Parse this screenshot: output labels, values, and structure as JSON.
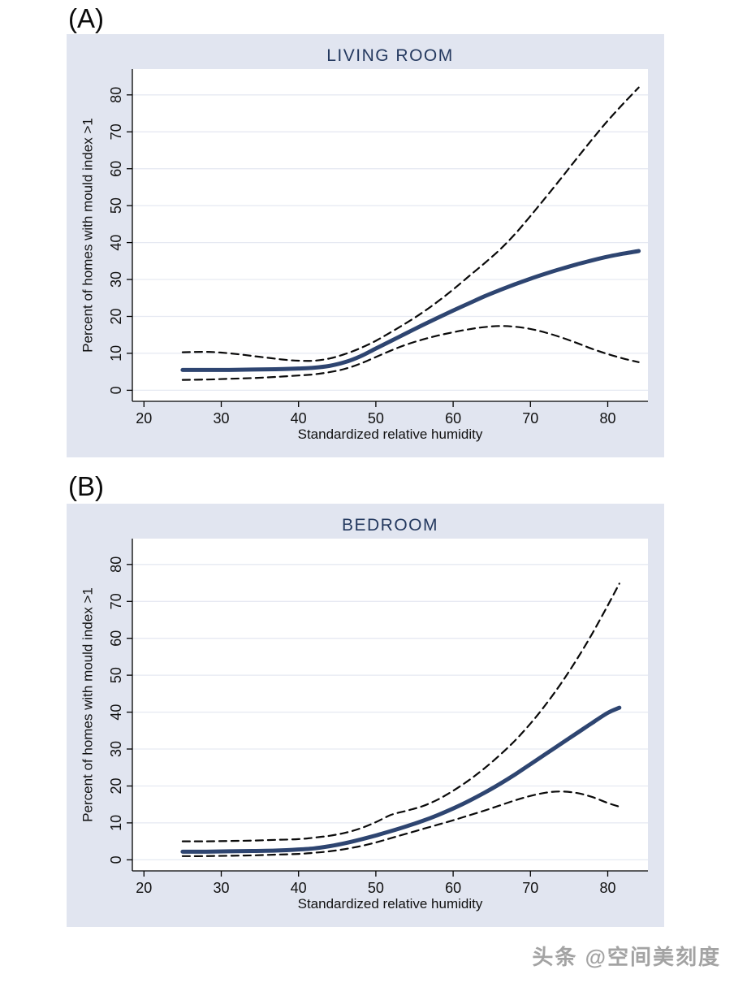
{
  "page": {
    "watermark": "头条 @空间美刻度"
  },
  "theme": {
    "panel_bg": "#e1e5f0",
    "plot_bg": "#ffffff",
    "grid_color": "#e6e9f2",
    "axis_color": "#000000",
    "title_color": "#24395f",
    "fit_line_color": "#2e4571",
    "ci_line_color": "#0a0a0a",
    "text_color": "#111111",
    "watermark_color": "#a3a3a3"
  },
  "chart_data": [
    {
      "type": "line",
      "panel_label": "(A)",
      "title": "LIVING ROOM",
      "xlabel": "Standardized relative humidity",
      "ylabel": "Percent of homes with mould index >1",
      "xticks": [
        20,
        30,
        40,
        50,
        60,
        70,
        80
      ],
      "yticks": [
        0,
        10,
        20,
        30,
        40,
        50,
        60,
        70,
        80
      ],
      "xlim": [
        18.5,
        85.2
      ],
      "ylim": [
        -3,
        87
      ],
      "grid": "horizontal",
      "legend": "none",
      "series": [
        {
          "name": "fitted-line",
          "style": "solid",
          "points": [
            [
              25,
              5.5
            ],
            [
              28,
              5.5
            ],
            [
              31,
              5.5
            ],
            [
              34,
              5.6
            ],
            [
              37,
              5.7
            ],
            [
              40,
              5.9
            ],
            [
              42,
              6.1
            ],
            [
              44,
              6.6
            ],
            [
              46,
              7.6
            ],
            [
              48,
              9.2
            ],
            [
              50,
              11.3
            ],
            [
              52,
              13.4
            ],
            [
              54,
              15.5
            ],
            [
              56,
              17.6
            ],
            [
              58,
              19.6
            ],
            [
              60,
              21.6
            ],
            [
              62,
              23.5
            ],
            [
              64,
              25.4
            ],
            [
              66,
              27.1
            ],
            [
              68,
              28.7
            ],
            [
              70,
              30.2
            ],
            [
              72,
              31.6
            ],
            [
              74,
              32.9
            ],
            [
              76,
              34.1
            ],
            [
              78,
              35.2
            ],
            [
              80,
              36.2
            ],
            [
              82,
              37.0
            ],
            [
              84,
              37.7
            ]
          ]
        },
        {
          "name": "upper-confidence-dashed",
          "style": "dashed",
          "points": [
            [
              25,
              10.3
            ],
            [
              28,
              10.4
            ],
            [
              30,
              10.2
            ],
            [
              32,
              9.8
            ],
            [
              34,
              9.3
            ],
            [
              36,
              8.8
            ],
            [
              38,
              8.3
            ],
            [
              40,
              8.0
            ],
            [
              42,
              8.0
            ],
            [
              44,
              8.6
            ],
            [
              46,
              9.8
            ],
            [
              48,
              11.4
            ],
            [
              50,
              13.4
            ],
            [
              52,
              15.8
            ],
            [
              54,
              18.3
            ],
            [
              56,
              21.0
            ],
            [
              58,
              24.0
            ],
            [
              60,
              27.3
            ],
            [
              62,
              30.8
            ],
            [
              64,
              34.3
            ],
            [
              66,
              38.0
            ],
            [
              68,
              42.3
            ],
            [
              70,
              47.2
            ],
            [
              72,
              52.3
            ],
            [
              74,
              57.5
            ],
            [
              76,
              62.8
            ],
            [
              78,
              68.0
            ],
            [
              80,
              73.0
            ],
            [
              82,
              77.6
            ],
            [
              84,
              82.0
            ]
          ]
        },
        {
          "name": "lower-confidence-dashed",
          "style": "dashed",
          "points": [
            [
              25,
              2.8
            ],
            [
              28,
              2.9
            ],
            [
              31,
              3.1
            ],
            [
              34,
              3.3
            ],
            [
              37,
              3.6
            ],
            [
              40,
              4.0
            ],
            [
              42,
              4.3
            ],
            [
              44,
              4.9
            ],
            [
              46,
              5.8
            ],
            [
              48,
              7.2
            ],
            [
              50,
              9.0
            ],
            [
              52,
              10.8
            ],
            [
              54,
              12.4
            ],
            [
              56,
              13.7
            ],
            [
              58,
              14.8
            ],
            [
              60,
              15.7
            ],
            [
              62,
              16.5
            ],
            [
              64,
              17.1
            ],
            [
              66,
              17.4
            ],
            [
              68,
              17.2
            ],
            [
              70,
              16.6
            ],
            [
              72,
              15.6
            ],
            [
              74,
              14.3
            ],
            [
              76,
              12.8
            ],
            [
              78,
              11.2
            ],
            [
              80,
              9.8
            ],
            [
              82,
              8.6
            ],
            [
              84,
              7.6
            ]
          ]
        }
      ]
    },
    {
      "type": "line",
      "panel_label": "(B)",
      "title": "BEDROOM",
      "xlabel": "Standardized relative humidity",
      "ylabel": "Percent of homes with mould index >1",
      "xticks": [
        20,
        30,
        40,
        50,
        60,
        70,
        80
      ],
      "yticks": [
        0,
        10,
        20,
        30,
        40,
        50,
        60,
        70,
        80
      ],
      "xlim": [
        18.5,
        85.2
      ],
      "ylim": [
        -3,
        87
      ],
      "grid": "horizontal",
      "legend": "none",
      "series": [
        {
          "name": "fitted-line",
          "style": "solid",
          "points": [
            [
              25,
              2.2
            ],
            [
              28,
              2.2
            ],
            [
              31,
              2.3
            ],
            [
              34,
              2.4
            ],
            [
              37,
              2.5
            ],
            [
              40,
              2.8
            ],
            [
              42,
              3.1
            ],
            [
              44,
              3.7
            ],
            [
              46,
              4.5
            ],
            [
              48,
              5.5
            ],
            [
              50,
              6.6
            ],
            [
              52,
              7.8
            ],
            [
              54,
              9.1
            ],
            [
              56,
              10.5
            ],
            [
              58,
              12.1
            ],
            [
              60,
              13.9
            ],
            [
              62,
              15.9
            ],
            [
              64,
              18.1
            ],
            [
              66,
              20.5
            ],
            [
              68,
              23.1
            ],
            [
              70,
              25.9
            ],
            [
              72,
              28.7
            ],
            [
              74,
              31.5
            ],
            [
              76,
              34.3
            ],
            [
              78,
              37.1
            ],
            [
              80,
              39.8
            ],
            [
              81.5,
              41.2
            ]
          ]
        },
        {
          "name": "upper-confidence-dashed",
          "style": "dashed",
          "points": [
            [
              25,
              5.0
            ],
            [
              28,
              5.0
            ],
            [
              31,
              5.1
            ],
            [
              34,
              5.2
            ],
            [
              37,
              5.4
            ],
            [
              40,
              5.6
            ],
            [
              42,
              6.0
            ],
            [
              44,
              6.5
            ],
            [
              46,
              7.3
            ],
            [
              48,
              8.5
            ],
            [
              50,
              10.2
            ],
            [
              52,
              12.2
            ],
            [
              54,
              13.3
            ],
            [
              56,
              14.5
            ],
            [
              58,
              16.3
            ],
            [
              60,
              18.7
            ],
            [
              62,
              21.5
            ],
            [
              64,
              24.7
            ],
            [
              66,
              28.3
            ],
            [
              68,
              32.3
            ],
            [
              70,
              36.9
            ],
            [
              72,
              42.1
            ],
            [
              74,
              47.9
            ],
            [
              76,
              54.3
            ],
            [
              78,
              61.3
            ],
            [
              80,
              68.9
            ],
            [
              81.5,
              74.8
            ]
          ]
        },
        {
          "name": "lower-confidence-dashed",
          "style": "dashed",
          "points": [
            [
              25,
              1.0
            ],
            [
              28,
              1.0
            ],
            [
              31,
              1.1
            ],
            [
              34,
              1.2
            ],
            [
              37,
              1.4
            ],
            [
              40,
              1.6
            ],
            [
              42,
              1.9
            ],
            [
              44,
              2.3
            ],
            [
              46,
              2.9
            ],
            [
              48,
              3.7
            ],
            [
              50,
              4.7
            ],
            [
              52,
              5.9
            ],
            [
              54,
              7.1
            ],
            [
              56,
              8.3
            ],
            [
              58,
              9.5
            ],
            [
              60,
              10.7
            ],
            [
              62,
              12.0
            ],
            [
              64,
              13.3
            ],
            [
              66,
              14.7
            ],
            [
              68,
              16.1
            ],
            [
              70,
              17.3
            ],
            [
              72,
              18.2
            ],
            [
              74,
              18.5
            ],
            [
              76,
              18.1
            ],
            [
              78,
              17.0
            ],
            [
              80,
              15.4
            ],
            [
              81.5,
              14.4
            ]
          ]
        }
      ]
    }
  ]
}
